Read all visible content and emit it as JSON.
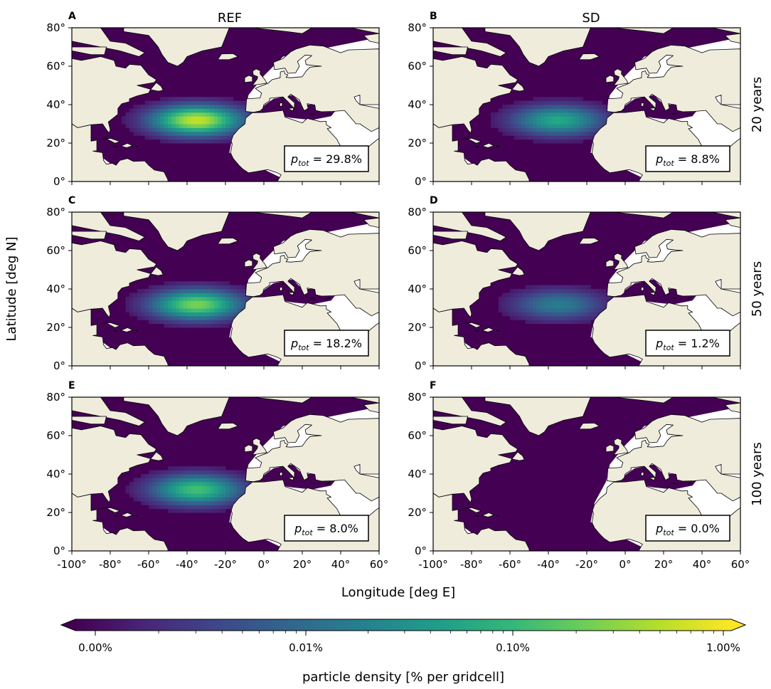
{
  "figure": {
    "y_axis_label": "Latitude [deg N]",
    "x_axis_label": "Longitude [deg E]",
    "column_titles": [
      "REF",
      "SD"
    ],
    "row_titles": [
      "20 years",
      "50 years",
      "100 years"
    ]
  },
  "colorbar": {
    "label": "particle density [% per gridcell]",
    "ticks": [
      "0.00%",
      "0.01%",
      "0.10%",
      "1.00%"
    ],
    "colormap": "viridis",
    "scale": "log",
    "extend": "both"
  },
  "colors": {
    "ocean_empty": "#440154",
    "land": "#efecdc",
    "viridis": [
      "#440154",
      "#482878",
      "#3e4989",
      "#31688e",
      "#26828e",
      "#1f9e89",
      "#35b779",
      "#6ece58",
      "#b5de2b",
      "#fde725"
    ]
  },
  "chart_data": [
    {
      "type": "heatmap",
      "panel": "A",
      "column": "REF",
      "row": "20 years",
      "stat_label": "p",
      "stat_subscript": "tot",
      "stat_value": "= 29.8%",
      "p_tot_percent": 29.8,
      "peak_relative_intensity": 0.92,
      "xlim": [
        -100,
        60
      ],
      "ylim": [
        0,
        80
      ],
      "xticks": [
        "-100°",
        "-80°",
        "-60°",
        "-40°",
        "-20°",
        "0°",
        "20°",
        "40°",
        "60°"
      ],
      "yticks": [
        "0°",
        "20°",
        "40°",
        "60°",
        "80°"
      ]
    },
    {
      "type": "heatmap",
      "panel": "B",
      "column": "SD",
      "row": "20 years",
      "stat_label": "p",
      "stat_subscript": "tot",
      "stat_value": "= 8.8%",
      "p_tot_percent": 8.8,
      "peak_relative_intensity": 0.6,
      "xlim": [
        -100,
        60
      ],
      "ylim": [
        0,
        80
      ],
      "xticks": [
        "-100°",
        "-80°",
        "-60°",
        "-40°",
        "-20°",
        "0°",
        "20°",
        "40°",
        "60°"
      ],
      "yticks": [
        "0°",
        "20°",
        "40°",
        "60°",
        "80°"
      ]
    },
    {
      "type": "heatmap",
      "panel": "C",
      "column": "REF",
      "row": "50 years",
      "stat_label": "p",
      "stat_subscript": "tot",
      "stat_value": "= 18.2%",
      "p_tot_percent": 18.2,
      "peak_relative_intensity": 0.8,
      "xlim": [
        -100,
        60
      ],
      "ylim": [
        0,
        80
      ],
      "xticks": [
        "-100°",
        "-80°",
        "-60°",
        "-40°",
        "-20°",
        "0°",
        "20°",
        "40°",
        "60°"
      ],
      "yticks": [
        "0°",
        "20°",
        "40°",
        "60°",
        "80°"
      ]
    },
    {
      "type": "heatmap",
      "panel": "D",
      "column": "SD",
      "row": "50 years",
      "stat_label": "p",
      "stat_subscript": "tot",
      "stat_value": "= 1.2%",
      "p_tot_percent": 1.2,
      "peak_relative_intensity": 0.42,
      "xlim": [
        -100,
        60
      ],
      "ylim": [
        0,
        80
      ],
      "xticks": [
        "-100°",
        "-80°",
        "-60°",
        "-40°",
        "-20°",
        "0°",
        "20°",
        "40°",
        "60°"
      ],
      "yticks": [
        "0°",
        "20°",
        "40°",
        "60°",
        "80°"
      ]
    },
    {
      "type": "heatmap",
      "panel": "E",
      "column": "REF",
      "row": "100 years",
      "stat_label": "p",
      "stat_subscript": "tot",
      "stat_value": "= 8.0%",
      "p_tot_percent": 8.0,
      "peak_relative_intensity": 0.7,
      "xlim": [
        -100,
        60
      ],
      "ylim": [
        0,
        80
      ],
      "xticks": [
        "-100°",
        "-80°",
        "-60°",
        "-40°",
        "-20°",
        "0°",
        "20°",
        "40°",
        "60°"
      ],
      "yticks": [
        "0°",
        "20°",
        "40°",
        "60°",
        "80°"
      ]
    },
    {
      "type": "heatmap",
      "panel": "F",
      "column": "SD",
      "row": "100 years",
      "stat_label": "p",
      "stat_subscript": "tot",
      "stat_value": "= 0.0%",
      "p_tot_percent": 0.0,
      "peak_relative_intensity": 0.0,
      "xlim": [
        -100,
        60
      ],
      "ylim": [
        0,
        80
      ],
      "xticks": [
        "-100°",
        "-80°",
        "-60°",
        "-40°",
        "-20°",
        "0°",
        "20°",
        "40°",
        "60°"
      ],
      "yticks": [
        "0°",
        "20°",
        "40°",
        "60°",
        "80°"
      ]
    }
  ]
}
